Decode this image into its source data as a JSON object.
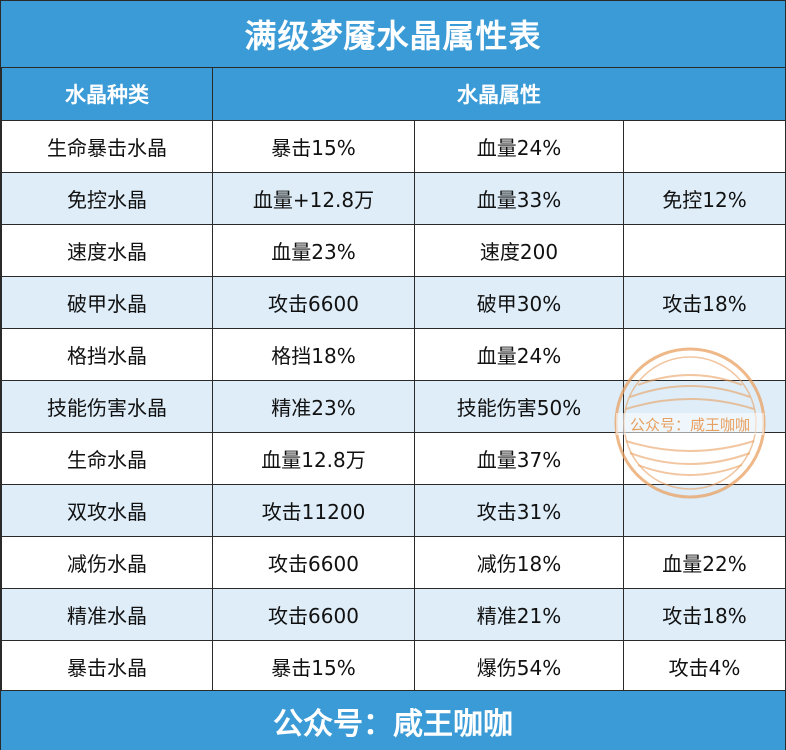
{
  "title": "满级梦魇水晶属性表",
  "header": {
    "type_label": "水晶种类",
    "attr_label": "水晶属性"
  },
  "rows": [
    {
      "name": "生命暴击水晶",
      "a1": "暴击15%",
      "a2": "血量24%",
      "a3": ""
    },
    {
      "name": "免控水晶",
      "a1": "血量+12.8万",
      "a2": "血量33%",
      "a3": "免控12%"
    },
    {
      "name": "速度水晶",
      "a1": "血量23%",
      "a2": "速度200",
      "a3": ""
    },
    {
      "name": "破甲水晶",
      "a1": "攻击6600",
      "a2": "破甲30%",
      "a3": "攻击18%"
    },
    {
      "name": "格挡水晶",
      "a1": "格挡18%",
      "a2": "血量24%",
      "a3": ""
    },
    {
      "name": "技能伤害水晶",
      "a1": "精准23%",
      "a2": "技能伤害50%",
      "a3": ""
    },
    {
      "name": "生命水晶",
      "a1": "血量12.8万",
      "a2": "血量37%",
      "a3": ""
    },
    {
      "name": "双攻水晶",
      "a1": "攻击11200",
      "a2": "攻击31%",
      "a3": ""
    },
    {
      "name": "减伤水晶",
      "a1": "攻击6600",
      "a2": "减伤18%",
      "a3": "血量22%"
    },
    {
      "name": "精准水晶",
      "a1": "攻击6600",
      "a2": "精准21%",
      "a3": "攻击18%"
    },
    {
      "name": "暴击水晶",
      "a1": "暴击15%",
      "a2": "爆伤54%",
      "a3": "攻击4%"
    }
  ],
  "footer": "公众号：咸王咖咖",
  "watermark": "公众号：咸王咖咖",
  "colors": {
    "header_blue": "#3b9bd6",
    "row_alt": "#deedf8",
    "stamp_orange": "#e8a060"
  }
}
